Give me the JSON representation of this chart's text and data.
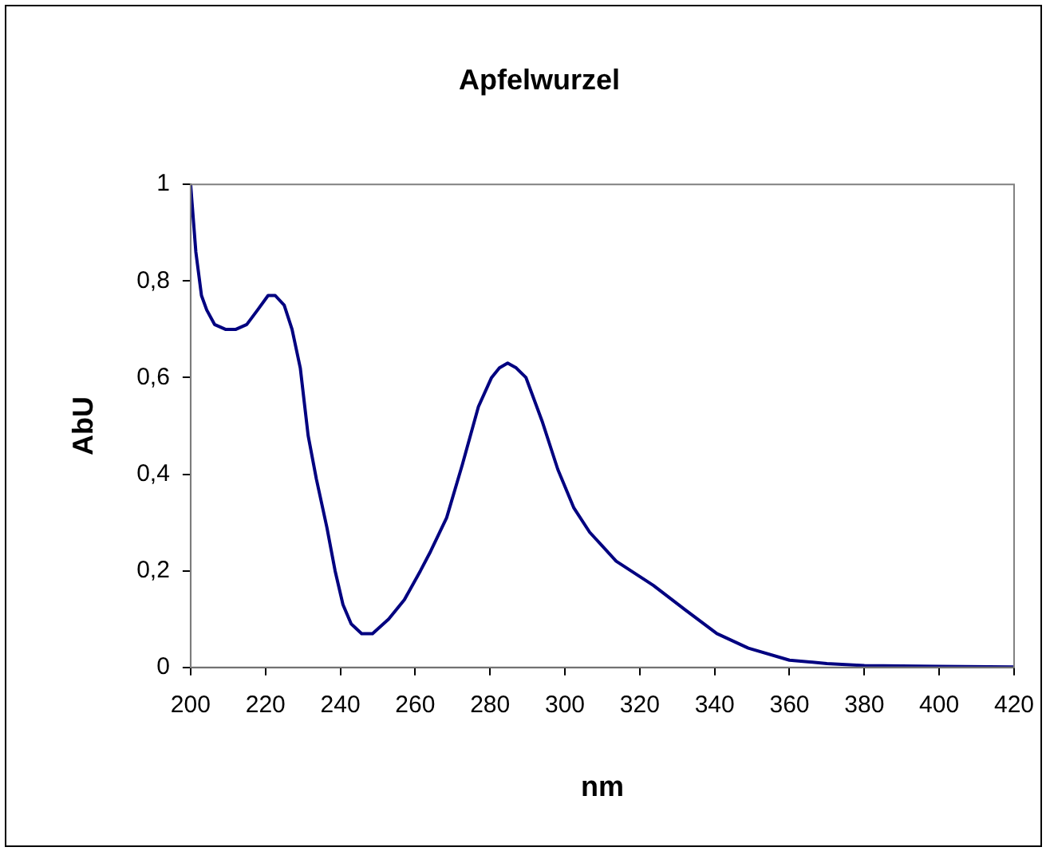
{
  "chart_data": {
    "type": "line",
    "title": "Apfelwurzel",
    "xlabel": "nm",
    "ylabel": "AbU",
    "x": [
      200,
      201.4,
      202.9,
      204.3,
      206.4,
      209.3,
      212.1,
      215,
      217.9,
      220.7,
      222.6,
      225,
      227.1,
      229.3,
      231.4,
      233.6,
      236.4,
      238.6,
      240.7,
      242.9,
      245.7,
      248.6,
      252.9,
      257.1,
      261.4,
      264.1,
      268.4,
      272.6,
      276.9,
      280.4,
      282.5,
      284.7,
      287,
      289.6,
      293.9,
      298.1,
      302.4,
      306.6,
      313.7,
      323.6,
      332,
      340.6,
      349,
      360,
      370,
      380,
      400,
      420
    ],
    "series": [
      {
        "color": "#000080",
        "values": [
          1,
          0.86,
          0.77,
          0.74,
          0.71,
          0.7,
          0.7,
          0.71,
          0.74,
          0.77,
          0.77,
          0.75,
          0.7,
          0.62,
          0.48,
          0.39,
          0.29,
          0.2,
          0.13,
          0.09,
          0.07,
          0.07,
          0.1,
          0.14,
          0.2,
          0.24,
          0.31,
          0.42,
          0.54,
          0.6,
          0.62,
          0.63,
          0.62,
          0.6,
          0.51,
          0.41,
          0.33,
          0.28,
          0.22,
          0.17,
          0.12,
          0.07,
          0.04,
          0.015,
          0.008,
          0.004,
          0.002,
          0.001
        ]
      }
    ],
    "xlim": [
      200,
      420
    ],
    "xticks": [
      200,
      220,
      240,
      260,
      280,
      300,
      320,
      340,
      360,
      380,
      400,
      420
    ],
    "ylim": [
      0,
      1
    ],
    "yticks": [
      0,
      {
        "value": 0.2,
        "label": "0,2"
      },
      {
        "value": 0.4,
        "label": "0,4"
      },
      {
        "value": 0.6,
        "label": "0,6"
      },
      {
        "value": 0.8,
        "label": "0,8"
      },
      1
    ],
    "grid": false,
    "legend": false,
    "marker": "none",
    "line_style": "solid"
  }
}
